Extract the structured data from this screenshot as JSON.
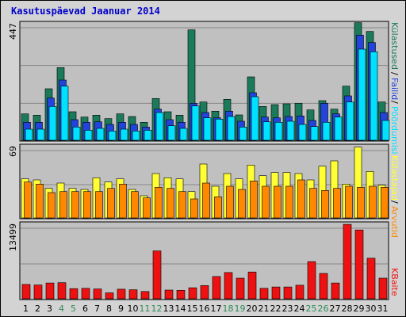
{
  "title": "Kasutuspäevad Jaanuar 2014",
  "colors": {
    "frame_bg": "#d3d3d3",
    "plot_bg": "#c0c0c0",
    "title": "#0000cc",
    "kulastused": "#1a7a5a",
    "failid": "#2244dd",
    "lehed": "#00e0ff",
    "kulastajad": "#ffff33",
    "arvutid": "#ff8800",
    "kbaite": "#ee1111",
    "day_normal": "#000000",
    "day_weekend": "#2e8b57"
  },
  "legend": {
    "kulastused": "Külastused",
    "failid": "Failid",
    "lehed": "Pöördumisi",
    "kulastajad": "Külastajad",
    "arvutid": "Arvutid",
    "kbaite": "KBaite",
    "sep1": "/",
    "sep2": "/",
    "sep3": "/"
  },
  "chart_data": [
    {
      "type": "bar",
      "panel": "hits",
      "ymax_label": "447",
      "ylim": [
        0,
        447
      ],
      "categories": [
        "1",
        "2",
        "3",
        "4",
        "5",
        "6",
        "7",
        "8",
        "9",
        "10",
        "11",
        "12",
        "13",
        "14",
        "15",
        "16",
        "17",
        "18",
        "19",
        "20",
        "21",
        "22",
        "23",
        "24",
        "25",
        "26",
        "27",
        "28",
        "29",
        "30",
        "31"
      ],
      "series": [
        {
          "name": "Külastused",
          "values": [
            100,
            95,
            195,
            275,
            108,
            88,
            95,
            82,
            100,
            90,
            68,
            158,
            108,
            95,
            418,
            145,
            110,
            155,
            96,
            240,
            128,
            135,
            138,
            140,
            115,
            150,
            118,
            205,
            445,
            412,
            145
          ]
        },
        {
          "name": "Failid",
          "values": [
            68,
            68,
            160,
            228,
            78,
            68,
            70,
            60,
            68,
            60,
            50,
            118,
            78,
            68,
            140,
            105,
            85,
            110,
            72,
            180,
            88,
            85,
            90,
            92,
            75,
            140,
            100,
            168,
            398,
            370,
            105
          ]
        },
        {
          "name": "Pöördumisi",
          "values": [
            42,
            42,
            128,
            205,
            50,
            38,
            45,
            35,
            42,
            35,
            38,
            105,
            55,
            45,
            130,
            85,
            80,
            90,
            50,
            165,
            70,
            68,
            72,
            60,
            52,
            68,
            88,
            145,
            345,
            335,
            75
          ]
        }
      ]
    },
    {
      "type": "bar",
      "panel": "visits",
      "ymax_label": "69",
      "ylim": [
        0,
        69
      ],
      "categories": [
        "1",
        "2",
        "3",
        "4",
        "5",
        "6",
        "7",
        "8",
        "9",
        "10",
        "11",
        "12",
        "13",
        "14",
        "15",
        "16",
        "17",
        "18",
        "19",
        "20",
        "21",
        "22",
        "23",
        "24",
        "25",
        "26",
        "27",
        "28",
        "29",
        "30",
        "31"
      ],
      "series": [
        {
          "name": "Külastajad",
          "values": [
            37,
            36,
            28,
            33,
            28,
            27,
            38,
            34,
            37,
            27,
            21,
            42,
            38,
            37,
            25,
            51,
            30,
            42,
            37,
            50,
            40,
            43,
            43,
            42,
            36,
            49,
            54,
            32,
            67,
            44,
            31
          ]
        },
        {
          "name": "Arvutid",
          "values": [
            34,
            32,
            24,
            25,
            25,
            25,
            25,
            28,
            32,
            25,
            19,
            29,
            28,
            25,
            18,
            33,
            20,
            30,
            27,
            35,
            30,
            30,
            30,
            36,
            28,
            26,
            28,
            30,
            29,
            30,
            29
          ]
        }
      ]
    },
    {
      "type": "bar",
      "panel": "kbytes",
      "ymax_label": "13499",
      "ylim": [
        0,
        13499
      ],
      "categories": [
        "1",
        "2",
        "3",
        "4",
        "5",
        "6",
        "7",
        "8",
        "9",
        "10",
        "11",
        "12",
        "13",
        "14",
        "15",
        "16",
        "17",
        "18",
        "19",
        "20",
        "21",
        "22",
        "23",
        "24",
        "25",
        "26",
        "27",
        "28",
        "29",
        "30",
        "31"
      ],
      "series": [
        {
          "name": "KBaite",
          "values": [
            2550,
            2450,
            2800,
            2850,
            1800,
            1850,
            1750,
            1050,
            1700,
            1600,
            1300,
            8500,
            1550,
            1500,
            1950,
            2350,
            3950,
            4650,
            3650,
            4750,
            1850,
            2100,
            2100,
            2400,
            6600,
            4500,
            2800,
            13200,
            12200,
            7200,
            3650
          ]
        }
      ]
    }
  ]
}
